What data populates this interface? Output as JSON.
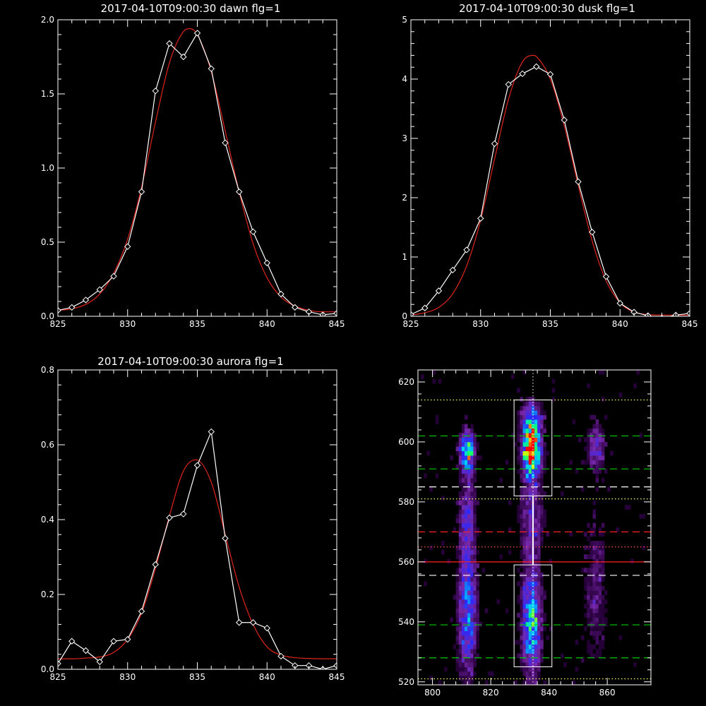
{
  "chart_data": [
    {
      "type": "line",
      "title": "2017-04-10T09:00:30 dawn flg=1",
      "xlim": [
        825,
        845
      ],
      "ylim": [
        0,
        2.0
      ],
      "xticks": [
        825,
        830,
        835,
        840,
        845
      ],
      "yticks": [
        0.0,
        0.5,
        1.0,
        1.5,
        2.0
      ],
      "xtick_labels": [
        "825",
        "830",
        "835",
        "840",
        "845"
      ],
      "ytick_labels": [
        "0.0",
        "0.5",
        "1.0",
        "1.5",
        "2.0"
      ],
      "grid": false,
      "series": [
        {
          "role": "data",
          "color": "#ffffff",
          "marker": "diamond",
          "x": [
            825,
            826,
            827,
            828,
            829,
            830,
            831,
            832,
            833,
            834,
            835,
            836,
            837,
            838,
            839,
            840,
            841,
            842,
            843,
            844,
            845
          ],
          "y": [
            0.04,
            0.06,
            0.11,
            0.18,
            0.27,
            0.47,
            0.84,
            1.52,
            1.84,
            1.75,
            1.91,
            1.67,
            1.17,
            0.84,
            0.57,
            0.36,
            0.15,
            0.06,
            0.03,
            0.01,
            0.02
          ]
        },
        {
          "role": "fit",
          "color": "#e0251b",
          "x": [
            825,
            826,
            827,
            828,
            829,
            830,
            831,
            832,
            833,
            834,
            834.5,
            835,
            836,
            837,
            838,
            839,
            840,
            841,
            842,
            843,
            844,
            845
          ],
          "y": [
            0.04,
            0.05,
            0.08,
            0.15,
            0.29,
            0.52,
            0.87,
            1.31,
            1.71,
            1.92,
            1.94,
            1.9,
            1.65,
            1.25,
            0.84,
            0.49,
            0.26,
            0.13,
            0.07,
            0.04,
            0.03,
            0.03
          ]
        }
      ]
    },
    {
      "type": "line",
      "title": "2017-04-10T09:00:30 dusk flg=1",
      "xlim": [
        825,
        845
      ],
      "ylim": [
        0,
        5
      ],
      "xticks": [
        825,
        830,
        835,
        840,
        845
      ],
      "yticks": [
        0,
        1,
        2,
        3,
        4,
        5
      ],
      "xtick_labels": [
        "825",
        "830",
        "835",
        "840",
        "845"
      ],
      "ytick_labels": [
        "0",
        "1",
        "2",
        "3",
        "4",
        "5"
      ],
      "grid": false,
      "series": [
        {
          "role": "data",
          "color": "#ffffff",
          "marker": "diamond",
          "x": [
            825,
            826,
            827,
            828,
            829,
            830,
            831,
            832,
            833,
            834,
            835,
            836,
            837,
            838,
            839,
            840,
            841,
            842,
            843,
            844,
            845
          ],
          "y": [
            0.03,
            0.14,
            0.43,
            0.78,
            1.12,
            1.65,
            2.91,
            3.91,
            4.09,
            4.21,
            4.08,
            3.31,
            2.27,
            1.42,
            0.67,
            0.22,
            0.07,
            0.01,
            -0.03,
            0.02,
            0.05
          ]
        },
        {
          "role": "fit",
          "color": "#e0251b",
          "x": [
            825,
            826,
            827,
            828,
            829,
            830,
            831,
            832,
            833,
            833.8,
            834,
            835,
            836,
            837,
            838,
            839,
            840,
            841,
            842,
            843,
            844,
            845
          ],
          "y": [
            0.02,
            0.06,
            0.15,
            0.38,
            0.85,
            1.62,
            2.65,
            3.66,
            4.29,
            4.4,
            4.38,
            4.0,
            3.21,
            2.21,
            1.27,
            0.6,
            0.23,
            0.07,
            0.03,
            0.02,
            0.02,
            0.02
          ]
        }
      ]
    },
    {
      "type": "line",
      "title": "2017-04-10T09:00:30 aurora flg=1",
      "xlim": [
        825,
        845
      ],
      "ylim": [
        0,
        0.8
      ],
      "xticks": [
        825,
        830,
        835,
        840,
        845
      ],
      "yticks": [
        0.0,
        0.2,
        0.4,
        0.6,
        0.8
      ],
      "xtick_labels": [
        "825",
        "830",
        "835",
        "840",
        "845"
      ],
      "ytick_labels": [
        "0.0",
        "0.2",
        "0.4",
        "0.6",
        "0.8"
      ],
      "grid": false,
      "series": [
        {
          "role": "data",
          "color": "#ffffff",
          "marker": "diamond",
          "x": [
            825,
            826,
            827,
            828,
            829,
            830,
            831,
            832,
            833,
            834,
            835,
            836,
            837,
            838,
            839,
            840,
            841,
            842,
            843,
            844,
            845
          ],
          "y": [
            0.015,
            0.075,
            0.05,
            0.02,
            0.075,
            0.08,
            0.155,
            0.28,
            0.405,
            0.415,
            0.545,
            0.635,
            0.35,
            0.125,
            0.125,
            0.11,
            0.035,
            0.01,
            0.01,
            0.0,
            0.01
          ]
        },
        {
          "role": "fit",
          "color": "#e0251b",
          "x": [
            825,
            826,
            827,
            828,
            829,
            830,
            831,
            832,
            833,
            834,
            834.9,
            836,
            837,
            838,
            839,
            840,
            841,
            842,
            843,
            844,
            845
          ],
          "y": [
            0.028,
            0.028,
            0.03,
            0.033,
            0.045,
            0.08,
            0.15,
            0.27,
            0.41,
            0.53,
            0.56,
            0.5,
            0.36,
            0.22,
            0.12,
            0.06,
            0.038,
            0.031,
            0.029,
            0.028,
            0.028
          ]
        }
      ]
    },
    {
      "type": "heatmap",
      "title": "",
      "xlim": [
        795,
        875
      ],
      "ylim": [
        519,
        624
      ],
      "xticks": [
        800,
        820,
        840,
        860
      ],
      "yticks": [
        520,
        540,
        560,
        580,
        600,
        620
      ],
      "xtick_labels": [
        "800",
        "820",
        "840",
        "860"
      ],
      "ytick_labels": [
        "520",
        "540",
        "560",
        "580",
        "600",
        "620"
      ],
      "grid": false,
      "colors": {
        "background": "#000000",
        "low": "#3a0a52",
        "mid": "#2424ff",
        "high": "#00e0ff",
        "peak": "#ff1a00"
      },
      "blobs": [
        {
          "x": 812,
          "y": 597,
          "sx": 1.8,
          "sy": 4.5,
          "amp": 0.72
        },
        {
          "x": 812,
          "y": 575,
          "sx": 2.2,
          "sy": 12,
          "amp": 0.28
        },
        {
          "x": 812,
          "y": 542,
          "sx": 2.4,
          "sy": 15,
          "amp": 0.45
        },
        {
          "x": 834,
          "y": 597,
          "sx": 2.2,
          "sy": 5.5,
          "amp": 1.0
        },
        {
          "x": 834,
          "y": 608,
          "sx": 2.5,
          "sy": 4.0,
          "amp": 0.5
        },
        {
          "x": 834,
          "y": 576,
          "sx": 3.0,
          "sy": 10,
          "amp": 0.3
        },
        {
          "x": 834,
          "y": 540,
          "sx": 2.4,
          "sy": 13,
          "amp": 0.62
        },
        {
          "x": 856,
          "y": 598,
          "sx": 2.2,
          "sy": 5.5,
          "amp": 0.35
        },
        {
          "x": 856,
          "y": 550,
          "sx": 3.0,
          "sy": 18,
          "amp": 0.2
        }
      ],
      "boxes": [
        {
          "x": [
            828,
            841
          ],
          "y": [
            582,
            614
          ],
          "color": "#ffffff"
        },
        {
          "x": [
            828,
            841
          ],
          "y": [
            525,
            559
          ],
          "color": "#ffffff"
        }
      ],
      "center_line": {
        "x": 834.5,
        "y": [
          559,
          582
        ],
        "color": "#ffffff"
      },
      "vertical_dotted": {
        "x": 834.5,
        "color": "#ffffff"
      },
      "hlines": [
        {
          "y": 614,
          "color": "#ffff66",
          "style": "dotted"
        },
        {
          "y": 602,
          "color": "#00cc00",
          "style": "dashed"
        },
        {
          "y": 591,
          "color": "#00cc00",
          "style": "dashed"
        },
        {
          "y": 585,
          "color": "#ffffff",
          "style": "dashed"
        },
        {
          "y": 581,
          "color": "#ffff66",
          "style": "dotted"
        },
        {
          "y": 570,
          "color": "#ff2020",
          "style": "dashed"
        },
        {
          "y": 565,
          "color": "#ff5050",
          "style": "dotted"
        },
        {
          "y": 560,
          "color": "#ff2020",
          "style": "solid"
        },
        {
          "y": 555.5,
          "color": "#ffffff",
          "style": "dashed"
        },
        {
          "y": 539,
          "color": "#00cc00",
          "style": "dashed"
        },
        {
          "y": 528,
          "color": "#00cc00",
          "style": "dashed"
        },
        {
          "y": 521,
          "color": "#ffff66",
          "style": "dotted"
        }
      ]
    }
  ]
}
